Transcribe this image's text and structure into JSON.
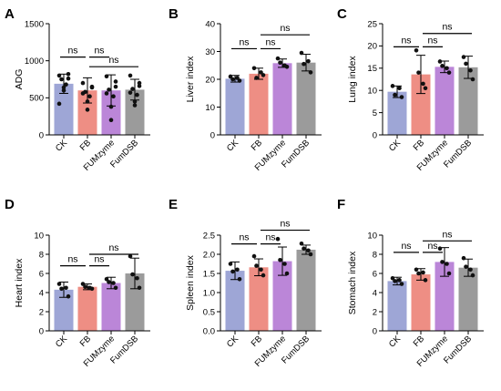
{
  "chart_data": [
    {
      "panel": "A",
      "type": "bar",
      "ylabel": "ADG",
      "ylim": [
        0,
        1500
      ],
      "yticks": [
        "0",
        "500",
        "1000",
        "1500"
      ],
      "categories": [
        "CK",
        "FB",
        "FUMzyme",
        "FumDSB"
      ],
      "values": [
        690,
        600,
        600,
        610
      ],
      "errors": [
        130,
        170,
        210,
        140
      ],
      "points": [
        [
          800,
          820,
          750,
          680,
          600,
          420,
          760,
          640
        ],
        [
          700,
          640,
          580,
          520,
          450,
          560,
          650,
          340
        ],
        [
          790,
          720,
          610,
          520,
          380,
          560,
          650,
          200
        ],
        [
          800,
          700,
          620,
          540,
          450,
          570,
          660,
          400
        ]
      ],
      "comparisons": [
        {
          "from": 0,
          "to": 1,
          "label": "ns",
          "y": 1050
        },
        {
          "from": 1,
          "to": 2,
          "label": "ns",
          "y": 1050
        },
        {
          "from": 1,
          "to": 3,
          "label": "ns",
          "y": 920
        }
      ]
    },
    {
      "panel": "B",
      "type": "bar",
      "ylabel": "Liver index",
      "ylim": [
        0,
        40
      ],
      "yticks": [
        "0",
        "10",
        "20",
        "30",
        "40"
      ],
      "categories": [
        "CK",
        "FB",
        "FUMzyme",
        "FumDSB"
      ],
      "values": [
        20.2,
        22.0,
        25.8,
        26.0
      ],
      "errors": [
        1.2,
        2.0,
        1.5,
        3.0
      ],
      "points": [
        [
          21.0,
          19.5,
          20.0,
          20.5
        ],
        [
          24.0,
          21.5,
          20.5,
          22.5
        ],
        [
          27.5,
          24.5,
          26.0,
          25.0
        ],
        [
          29.5,
          22.5,
          25.5,
          26.5
        ]
      ],
      "comparisons": [
        {
          "from": 0,
          "to": 1,
          "label": "ns",
          "y": 31
        },
        {
          "from": 1,
          "to": 2,
          "label": "ns",
          "y": 31
        },
        {
          "from": 1,
          "to": 3,
          "label": "ns",
          "y": 36
        }
      ]
    },
    {
      "panel": "C",
      "type": "bar",
      "ylabel": "Lung index",
      "ylim": [
        0,
        25
      ],
      "yticks": [
        "0",
        "5",
        "10",
        "15",
        "20",
        "25"
      ],
      "categories": [
        "CK",
        "FB",
        "FUMzyme",
        "FumDSB"
      ],
      "values": [
        9.7,
        13.6,
        15.3,
        15.2
      ],
      "errors": [
        1.3,
        4.3,
        1.3,
        2.5
      ],
      "points": [
        [
          11.0,
          8.5,
          9.0,
          10.5
        ],
        [
          19.0,
          10.5,
          14.0,
          11.5
        ],
        [
          16.5,
          14.0,
          15.5,
          15.0
        ],
        [
          17.5,
          12.5,
          16.0,
          14.5
        ]
      ],
      "comparisons": [
        {
          "from": 0,
          "to": 1,
          "label": "ns",
          "y": 19.8
        },
        {
          "from": 1,
          "to": 2,
          "label": "ns",
          "y": 19.8
        },
        {
          "from": 1,
          "to": 3,
          "label": "ns",
          "y": 22.8
        }
      ]
    },
    {
      "panel": "D",
      "type": "bar",
      "ylabel": "Heart index",
      "ylim": [
        0,
        10
      ],
      "yticks": [
        "0",
        "2",
        "4",
        "6",
        "8",
        "10"
      ],
      "categories": [
        "CK",
        "FB",
        "FUMzyme",
        "FumDSB"
      ],
      "values": [
        4.3,
        4.6,
        5.0,
        6.0
      ],
      "errors": [
        0.8,
        0.3,
        0.6,
        1.6
      ],
      "points": [
        [
          4.9,
          3.6,
          4.4,
          4.5
        ],
        [
          4.9,
          4.4,
          4.6,
          4.5
        ],
        [
          5.4,
          4.5,
          5.1,
          5.0
        ],
        [
          7.8,
          4.5,
          5.9,
          5.5
        ]
      ],
      "comparisons": [
        {
          "from": 0,
          "to": 1,
          "label": "ns",
          "y": 6.8
        },
        {
          "from": 1,
          "to": 2,
          "label": "ns",
          "y": 6.8
        },
        {
          "from": 1,
          "to": 3,
          "label": "ns",
          "y": 8.0
        }
      ]
    },
    {
      "panel": "E",
      "type": "bar",
      "ylabel": "Spleen index",
      "ylim": [
        0,
        2.5
      ],
      "yticks": [
        "0.0",
        "0.5",
        "1.0",
        "1.5",
        "2.0",
        "2.5"
      ],
      "categories": [
        "CK",
        "FB",
        "FUMzyme",
        "FumDSB"
      ],
      "values": [
        1.57,
        1.66,
        1.82,
        2.12
      ],
      "errors": [
        0.23,
        0.22,
        0.37,
        0.12
      ],
      "points": [
        [
          1.75,
          1.35,
          1.55,
          1.6
        ],
        [
          1.95,
          1.45,
          1.7,
          1.6
        ],
        [
          2.4,
          1.5,
          1.85,
          1.75
        ],
        [
          2.28,
          2.0,
          2.15,
          2.1
        ]
      ],
      "comparisons": [
        {
          "from": 0,
          "to": 1,
          "label": "ns",
          "y": 2.27
        },
        {
          "from": 1,
          "to": 2,
          "label": "ns",
          "y": 2.27
        },
        {
          "from": 1,
          "to": 3,
          "label": "ns",
          "y": 2.63
        }
      ]
    },
    {
      "panel": "F",
      "type": "bar",
      "ylabel": "Stomach index",
      "ylim": [
        0,
        10
      ],
      "yticks": [
        "0",
        "2",
        "4",
        "6",
        "8",
        "10"
      ],
      "categories": [
        "CK",
        "FB",
        "FUMzyme",
        "FumDSB"
      ],
      "values": [
        5.2,
        5.9,
        7.2,
        6.6
      ],
      "errors": [
        0.4,
        0.6,
        1.5,
        0.9
      ],
      "points": [
        [
          5.5,
          4.9,
          5.2,
          5.3
        ],
        [
          6.4,
          5.3,
          6.0,
          6.1
        ],
        [
          8.6,
          6.0,
          7.2,
          7.0
        ],
        [
          7.6,
          5.8,
          6.7,
          6.4
        ]
      ],
      "comparisons": [
        {
          "from": 0,
          "to": 1,
          "label": "ns",
          "y": 8.2
        },
        {
          "from": 1,
          "to": 2,
          "label": "ns",
          "y": 8.2
        },
        {
          "from": 1,
          "to": 3,
          "label": "ns",
          "y": 9.4
        }
      ]
    }
  ],
  "colors": [
    "#9ea6d6",
    "#ee8e84",
    "#bb86d8",
    "#9b9b9b"
  ],
  "point_color": "#111111"
}
